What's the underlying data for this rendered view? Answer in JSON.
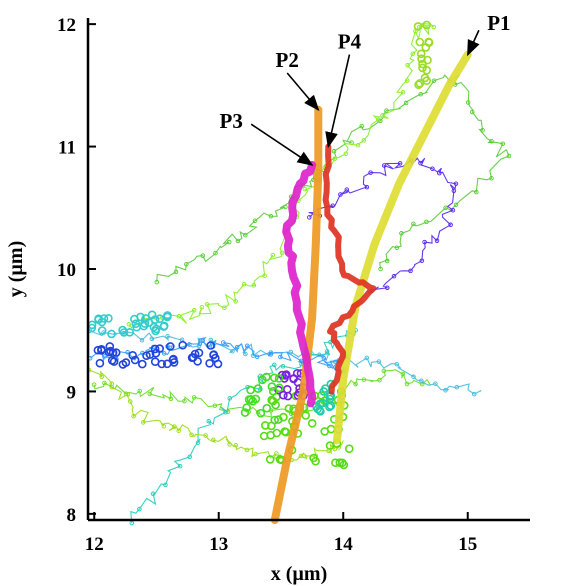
{
  "chart_data": {
    "type": "line",
    "xlabel": "x (µm)",
    "ylabel": "y (µm)",
    "xlim": [
      11.95,
      15.5
    ],
    "ylim": [
      7.95,
      12.05
    ],
    "xticks": [
      "12",
      "13",
      "14",
      "15"
    ],
    "yticks": [
      "8",
      "9",
      "10",
      "11",
      "12"
    ],
    "grid": false,
    "annotations": [
      {
        "label": "P1",
        "text_at": [
          15.25,
          11.95
        ],
        "arrow_to": [
          15.0,
          11.75
        ]
      },
      {
        "label": "P2",
        "text_at": [
          13.55,
          11.65
        ],
        "arrow_to": [
          13.8,
          11.3
        ]
      },
      {
        "label": "P4",
        "text_at": [
          14.05,
          11.8
        ],
        "arrow_to": [
          13.88,
          11.0
        ]
      },
      {
        "label": "P3",
        "text_at": [
          13.1,
          11.15
        ],
        "arrow_to": [
          13.75,
          10.85
        ]
      }
    ],
    "background_traces": [
      {
        "color": "#66dd22",
        "points": [
          [
            12.0,
            9.05
          ],
          [
            12.4,
            9.0
          ],
          [
            12.8,
            8.92
          ],
          [
            13.2,
            8.85
          ],
          [
            13.6,
            8.8
          ],
          [
            13.9,
            8.9
          ],
          [
            14.1,
            9.1
          ],
          [
            14.4,
            9.15
          ],
          [
            14.7,
            9.05
          ]
        ]
      },
      {
        "color": "#55cc33",
        "points": [
          [
            12.5,
            9.9
          ],
          [
            12.9,
            10.1
          ],
          [
            13.2,
            10.3
          ],
          [
            13.5,
            10.5
          ],
          [
            13.8,
            10.8
          ],
          [
            14.1,
            11.1
          ],
          [
            14.5,
            11.35
          ],
          [
            14.9,
            11.6
          ],
          [
            15.1,
            11.2
          ],
          [
            15.3,
            10.9
          ],
          [
            14.9,
            10.5
          ],
          [
            14.5,
            10.3
          ],
          [
            14.3,
            10.0
          ]
        ]
      },
      {
        "color": "#44bbdd",
        "points": [
          [
            12.0,
            9.5
          ],
          [
            12.4,
            9.45
          ],
          [
            12.8,
            9.4
          ],
          [
            13.2,
            9.35
          ],
          [
            13.6,
            9.3
          ],
          [
            14.0,
            9.25
          ],
          [
            14.4,
            9.2
          ],
          [
            14.8,
            9.05
          ],
          [
            15.1,
            9.0
          ]
        ]
      },
      {
        "color": "#88ee22",
        "points": [
          [
            12.3,
            9.55
          ],
          [
            12.7,
            9.6
          ],
          [
            13.0,
            9.7
          ],
          [
            13.3,
            9.9
          ],
          [
            13.5,
            10.2
          ],
          [
            13.7,
            10.6
          ],
          [
            13.9,
            10.9
          ],
          [
            14.2,
            11.1
          ],
          [
            14.5,
            11.5
          ],
          [
            14.6,
            11.9
          ],
          [
            14.7,
            12.0
          ]
        ]
      },
      {
        "color": "#22ccbb",
        "points": [
          [
            12.3,
            7.95
          ],
          [
            12.6,
            8.3
          ],
          [
            12.9,
            8.7
          ],
          [
            13.2,
            9.0
          ],
          [
            13.5,
            9.2
          ],
          [
            13.8,
            9.3
          ],
          [
            14.1,
            9.5
          ]
        ]
      },
      {
        "color": "#5522ee",
        "points": [
          [
            13.7,
            10.4
          ],
          [
            14.0,
            10.6
          ],
          [
            14.3,
            10.8
          ],
          [
            14.6,
            10.9
          ],
          [
            14.9,
            10.7
          ],
          [
            14.8,
            10.3
          ],
          [
            14.5,
            10.0
          ],
          [
            14.2,
            9.8
          ]
        ]
      },
      {
        "color": "#3399ff",
        "points": [
          [
            12.0,
            9.3
          ],
          [
            12.3,
            9.3
          ],
          [
            12.6,
            9.35
          ],
          [
            12.9,
            9.4
          ],
          [
            13.2,
            9.35
          ],
          [
            13.5,
            9.3
          ],
          [
            13.8,
            9.25
          ],
          [
            14.0,
            9.2
          ]
        ]
      },
      {
        "color": "#99dd11",
        "points": [
          [
            12.0,
            9.2
          ],
          [
            12.2,
            9.0
          ],
          [
            12.4,
            8.8
          ],
          [
            12.7,
            8.7
          ],
          [
            13.0,
            8.6
          ],
          [
            13.3,
            8.5
          ],
          [
            13.6,
            8.45
          ],
          [
            13.8,
            8.5
          ],
          [
            14.0,
            8.6
          ]
        ]
      }
    ],
    "paths": [
      {
        "name": "P1",
        "color": "#dddd33",
        "points": [
          [
            13.95,
            8.6
          ],
          [
            14.0,
            9.1
          ],
          [
            14.1,
            9.7
          ],
          [
            14.25,
            10.2
          ],
          [
            14.45,
            10.7
          ],
          [
            14.65,
            11.1
          ],
          [
            14.85,
            11.5
          ],
          [
            15.0,
            11.75
          ]
        ]
      },
      {
        "name": "P2",
        "color": "#ee9922",
        "points": [
          [
            13.45,
            7.95
          ],
          [
            13.55,
            8.45
          ],
          [
            13.68,
            9.0
          ],
          [
            13.75,
            9.6
          ],
          [
            13.78,
            10.2
          ],
          [
            13.8,
            10.8
          ],
          [
            13.8,
            11.3
          ]
        ]
      },
      {
        "name": "P3",
        "color": "#dd22cc",
        "points": [
          [
            13.75,
            8.9
          ],
          [
            13.7,
            9.25
          ],
          [
            13.65,
            9.6
          ],
          [
            13.6,
            10.0
          ],
          [
            13.55,
            10.3
          ],
          [
            13.62,
            10.6
          ],
          [
            13.75,
            10.85
          ]
        ]
      },
      {
        "name": "P4",
        "color": "#dd3322",
        "points": [
          [
            13.9,
            9.0
          ],
          [
            14.0,
            9.3
          ],
          [
            13.9,
            9.5
          ],
          [
            14.1,
            9.7
          ],
          [
            14.25,
            9.85
          ],
          [
            14.0,
            9.95
          ],
          [
            13.95,
            10.25
          ],
          [
            13.85,
            10.55
          ],
          [
            13.88,
            11.0
          ]
        ]
      }
    ]
  }
}
